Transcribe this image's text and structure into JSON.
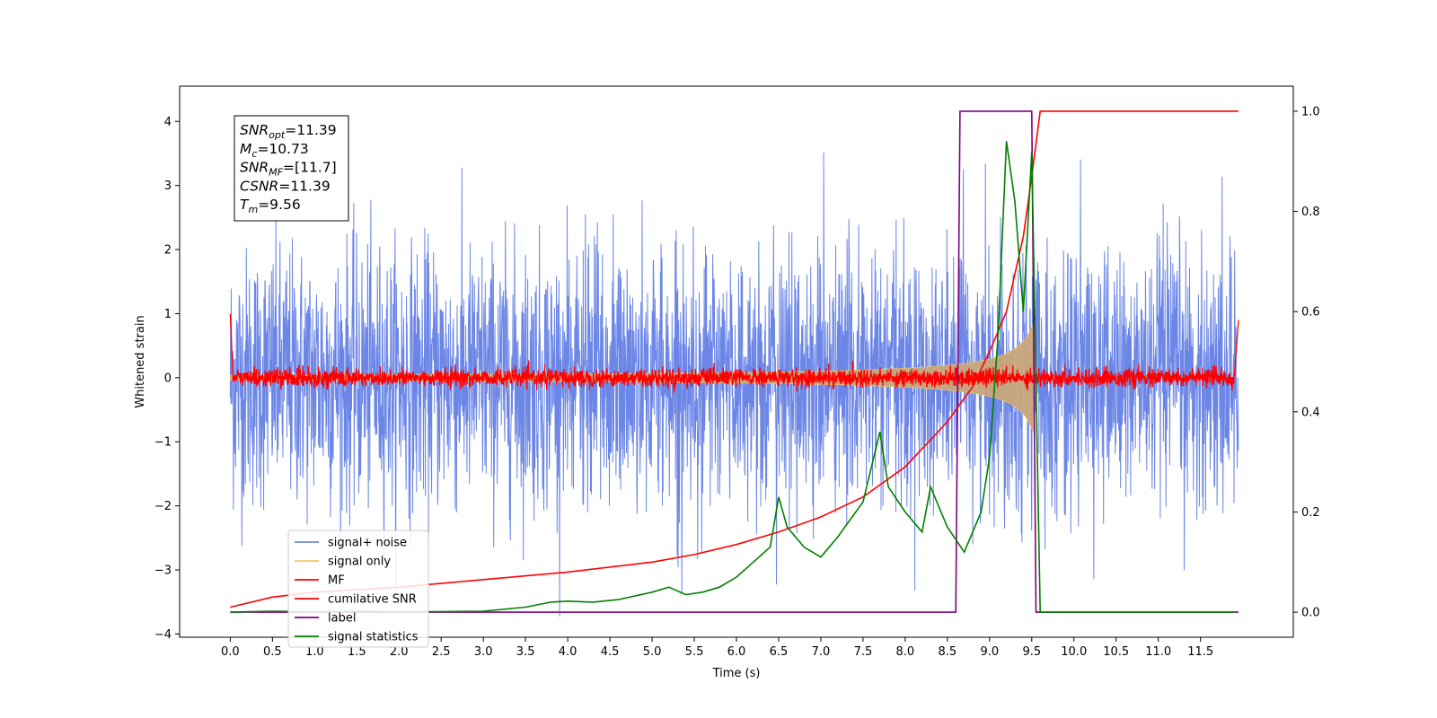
{
  "chart_data": {
    "type": "line",
    "xlabel": "Time (s)",
    "ylabel": "Whitened strain",
    "xlim": [
      -0.6,
      12.6
    ],
    "ylim_left": [
      -4.05,
      4.55
    ],
    "ylim_right": [
      -0.05,
      1.05
    ],
    "grid": false,
    "legend_position": "lower-left",
    "x_ticks": [
      "0.0",
      "0.5",
      "1.0",
      "1.5",
      "2.0",
      "2.5",
      "3.0",
      "3.5",
      "4.0",
      "4.5",
      "5.0",
      "5.5",
      "6.0",
      "6.5",
      "7.0",
      "7.5",
      "8.0",
      "8.5",
      "9.0",
      "9.5",
      "10.0",
      "10.5",
      "11.0",
      "11.5"
    ],
    "y_ticks_left": [
      "−4",
      "−3",
      "−2",
      "−1",
      "0",
      "1",
      "2",
      "3",
      "4"
    ],
    "y_ticks_right": [
      "0.0",
      "0.2",
      "0.4",
      "0.6",
      "0.8",
      "1.0"
    ],
    "annotation": [
      {
        "symbol": "SNR",
        "subscript": "opt",
        "value": "=11.39"
      },
      {
        "symbol": "M",
        "subscript": "c",
        "value": "=10.73"
      },
      {
        "symbol": "SNR",
        "subscript": "MF",
        "value": "=[11.7]"
      },
      {
        "symbol": "CSNR",
        "subscript": "",
        "value": "=11.39"
      },
      {
        "symbol": "T",
        "subscript": "m",
        "value": "=9.56"
      }
    ],
    "legend": [
      "signal+ noise",
      "signal only",
      "MF",
      "cumilative SNR",
      "label",
      "signal statistics"
    ],
    "colors": {
      "signal_noise": "#6b86e6",
      "signal_only": "#f5c76a",
      "signal_fill": "#c9a77a",
      "mf": "#ff0000",
      "cumulative_snr": "#ff0000",
      "label": "#800080",
      "signal_statistics": "#008000"
    },
    "series": [
      {
        "name": "label",
        "axis": "right",
        "x": [
          0.0,
          8.6,
          8.65,
          9.5,
          9.55,
          11.95
        ],
        "values": [
          0.0,
          0.0,
          1.0,
          1.0,
          0.0,
          0.0
        ]
      },
      {
        "name": "cumilative SNR",
        "axis": "right",
        "x": [
          0.0,
          0.5,
          1.0,
          2.0,
          3.0,
          4.0,
          5.0,
          5.5,
          6.0,
          6.5,
          7.0,
          7.5,
          8.0,
          8.5,
          8.8,
          9.0,
          9.2,
          9.4,
          9.5,
          9.6,
          11.95
        ],
        "values": [
          0.01,
          0.03,
          0.04,
          0.05,
          0.065,
          0.08,
          0.1,
          0.115,
          0.135,
          0.16,
          0.19,
          0.23,
          0.29,
          0.38,
          0.45,
          0.52,
          0.6,
          0.75,
          0.87,
          1.0,
          1.0
        ]
      },
      {
        "name": "signal statistics",
        "axis": "right",
        "x": [
          0.0,
          0.5,
          1.0,
          1.5,
          2.0,
          2.5,
          3.0,
          3.5,
          3.8,
          4.0,
          4.3,
          4.6,
          5.0,
          5.2,
          5.4,
          5.6,
          5.8,
          6.0,
          6.2,
          6.4,
          6.5,
          6.6,
          6.8,
          7.0,
          7.2,
          7.5,
          7.7,
          7.8,
          8.0,
          8.2,
          8.3,
          8.5,
          8.7,
          8.9,
          9.0,
          9.1,
          9.2,
          9.3,
          9.4,
          9.5,
          9.6,
          9.8,
          10.0,
          11.9
        ],
        "values": [
          0.0,
          0.002,
          0.001,
          0.002,
          0.001,
          0.001,
          0.002,
          0.01,
          0.02,
          0.022,
          0.02,
          0.025,
          0.04,
          0.05,
          0.035,
          0.04,
          0.05,
          0.07,
          0.1,
          0.13,
          0.23,
          0.17,
          0.13,
          0.11,
          0.15,
          0.22,
          0.36,
          0.25,
          0.2,
          0.16,
          0.25,
          0.17,
          0.12,
          0.2,
          0.31,
          0.55,
          0.94,
          0.82,
          0.6,
          0.92,
          0.0,
          0.0,
          0.0,
          0.0
        ]
      }
    ]
  }
}
